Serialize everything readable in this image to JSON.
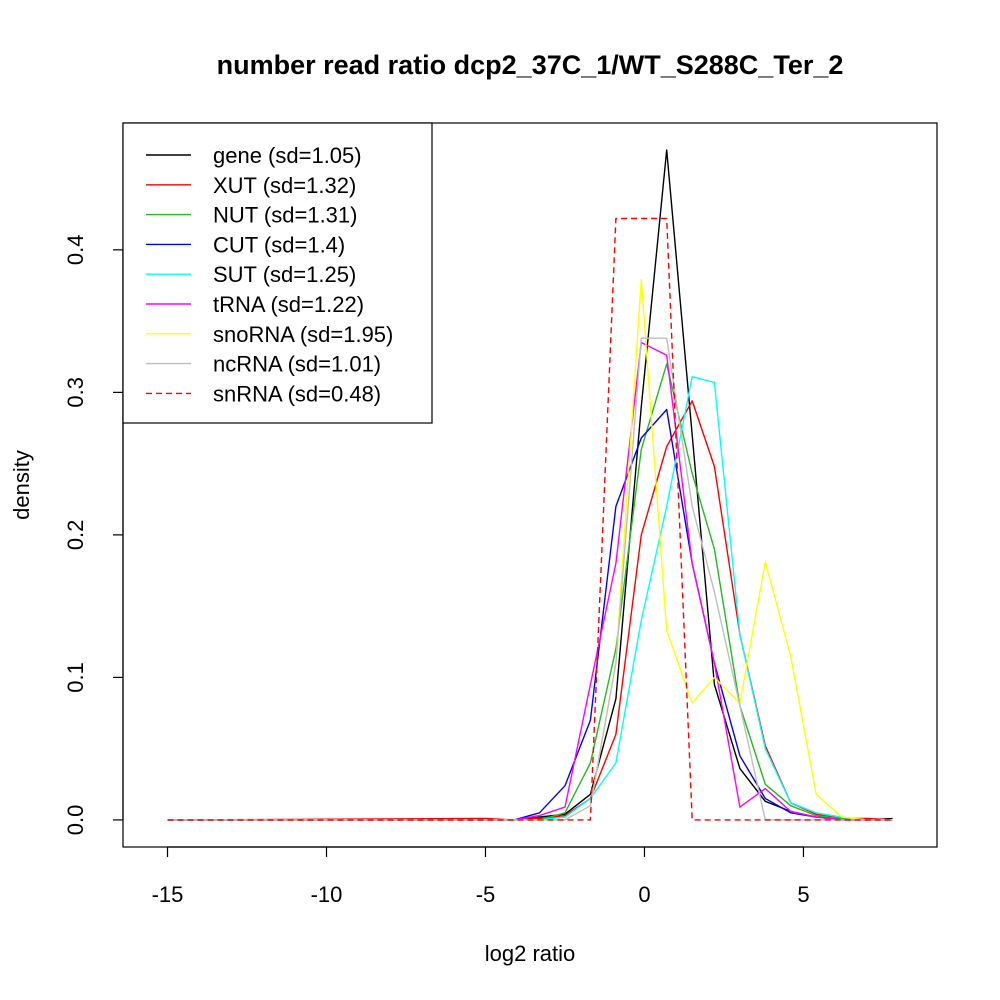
{
  "chart_data": {
    "type": "line",
    "title": "number read ratio dcp2_37C_1/WT_S288C_Ter_2",
    "xlabel": "log2 ratio",
    "ylabel": "density",
    "xlim": [
      -16.4,
      9.2
    ],
    "ylim": [
      -0.019,
      0.489
    ],
    "x_ticks": [
      -15,
      -10,
      -5,
      0,
      5
    ],
    "x_tick_labels": [
      "-15",
      "-10",
      "-5",
      "0",
      "5"
    ],
    "y_ticks": [
      0.0,
      0.1,
      0.2,
      0.3,
      0.4
    ],
    "y_tick_labels": [
      "0.0",
      "0.1",
      "0.2",
      "0.3",
      "0.4"
    ],
    "grid": false,
    "legend_position": "top-left",
    "series": [
      {
        "name": "gene (sd=1.05)",
        "color": "#000000",
        "dash": false,
        "points": [
          [
            -15.0,
            0
          ],
          [
            -5.0,
            0
          ],
          [
            -4.1,
            0
          ],
          [
            -3.3,
            0.002
          ],
          [
            -2.5,
            0.004
          ],
          [
            -1.7,
            0.018
          ],
          [
            -0.9,
            0.085
          ],
          [
            -0.1,
            0.29
          ],
          [
            0.7,
            0.47
          ],
          [
            1.5,
            0.27
          ],
          [
            2.2,
            0.095
          ],
          [
            3.0,
            0.036
          ],
          [
            3.8,
            0.013
          ],
          [
            4.6,
            0.006
          ],
          [
            5.4,
            0.002
          ],
          [
            6.2,
            0.001
          ],
          [
            7.0,
            0
          ],
          [
            7.8,
            0.001
          ]
        ]
      },
      {
        "name": "XUT (sd=1.32)",
        "color": "#ff0000",
        "dash": false,
        "points": [
          [
            -15.0,
            0
          ],
          [
            -5.0,
            0.001
          ],
          [
            -4.1,
            0
          ],
          [
            -3.3,
            0.001
          ],
          [
            -2.5,
            0.003
          ],
          [
            -1.7,
            0.015
          ],
          [
            -0.9,
            0.06
          ],
          [
            -0.1,
            0.2
          ],
          [
            0.7,
            0.262
          ],
          [
            1.5,
            0.294
          ],
          [
            2.2,
            0.248
          ],
          [
            3.0,
            0.13
          ],
          [
            3.8,
            0.052
          ],
          [
            4.6,
            0.012
          ],
          [
            5.4,
            0.004
          ],
          [
            6.2,
            0.001
          ],
          [
            7.0,
            0.001
          ],
          [
            7.8,
            0
          ]
        ]
      },
      {
        "name": "NUT (sd=1.31)",
        "color": "#22bb22",
        "dash": false,
        "points": [
          [
            -15.0,
            0
          ],
          [
            -5.0,
            0
          ],
          [
            -4.1,
            0
          ],
          [
            -3.3,
            0
          ],
          [
            -2.5,
            0.005
          ],
          [
            -1.7,
            0.04
          ],
          [
            -0.9,
            0.12
          ],
          [
            -0.1,
            0.26
          ],
          [
            0.7,
            0.32
          ],
          [
            1.5,
            0.243
          ],
          [
            2.2,
            0.19
          ],
          [
            3.0,
            0.08
          ],
          [
            3.8,
            0.025
          ],
          [
            4.6,
            0.01
          ],
          [
            5.4,
            0.003
          ],
          [
            6.2,
            0.001
          ],
          [
            7.0,
            0
          ],
          [
            7.8,
            0
          ]
        ]
      },
      {
        "name": "CUT (sd=1.4)",
        "color": "#0000ff",
        "dash": false,
        "points": [
          [
            -15.0,
            0
          ],
          [
            -5.0,
            0
          ],
          [
            -4.1,
            0
          ],
          [
            -3.3,
            0.005
          ],
          [
            -2.5,
            0.024
          ],
          [
            -1.7,
            0.07
          ],
          [
            -0.9,
            0.22
          ],
          [
            -0.1,
            0.268
          ],
          [
            0.7,
            0.288
          ],
          [
            1.5,
            0.18
          ],
          [
            2.2,
            0.11
          ],
          [
            3.0,
            0.045
          ],
          [
            3.8,
            0.015
          ],
          [
            4.6,
            0.005
          ],
          [
            5.4,
            0.002
          ],
          [
            6.2,
            0
          ],
          [
            7.0,
            0
          ],
          [
            7.8,
            0
          ]
        ]
      },
      {
        "name": "SUT (sd=1.25)",
        "color": "#00ffff",
        "dash": false,
        "points": [
          [
            -15.0,
            0
          ],
          [
            -5.0,
            0
          ],
          [
            -4.1,
            0
          ],
          [
            -3.3,
            0
          ],
          [
            -2.5,
            0.002
          ],
          [
            -1.7,
            0.015
          ],
          [
            -0.9,
            0.04
          ],
          [
            -0.1,
            0.14
          ],
          [
            0.7,
            0.22
          ],
          [
            1.5,
            0.311
          ],
          [
            2.2,
            0.307
          ],
          [
            3.0,
            0.13
          ],
          [
            3.8,
            0.05
          ],
          [
            4.6,
            0.012
          ],
          [
            5.4,
            0.005
          ],
          [
            6.2,
            0.002
          ],
          [
            7.0,
            0
          ],
          [
            7.8,
            0
          ]
        ]
      },
      {
        "name": "tRNA (sd=1.22)",
        "color": "#ff00ff",
        "dash": false,
        "points": [
          [
            -15.0,
            0
          ],
          [
            -5.0,
            0
          ],
          [
            -4.1,
            0
          ],
          [
            -3.3,
            0.003
          ],
          [
            -2.5,
            0.009
          ],
          [
            -1.7,
            0.095
          ],
          [
            -0.9,
            0.18
          ],
          [
            -0.1,
            0.335
          ],
          [
            0.7,
            0.326
          ],
          [
            1.5,
            0.18
          ],
          [
            2.2,
            0.11
          ],
          [
            3.0,
            0.009
          ],
          [
            3.8,
            0.022
          ],
          [
            4.6,
            0.006
          ],
          [
            5.4,
            0.002
          ],
          [
            6.2,
            0
          ],
          [
            7.0,
            0
          ],
          [
            7.8,
            0
          ]
        ]
      },
      {
        "name": "snoRNA (sd=1.95)",
        "color": "#ffff00",
        "dash": false,
        "points": [
          [
            -15.0,
            0
          ],
          [
            -5.0,
            0
          ],
          [
            -4.1,
            0
          ],
          [
            -3.3,
            0
          ],
          [
            -2.5,
            0
          ],
          [
            -1.7,
            0.01
          ],
          [
            -0.9,
            0.11
          ],
          [
            -0.1,
            0.379
          ],
          [
            0.7,
            0.133
          ],
          [
            1.5,
            0.082
          ],
          [
            2.2,
            0.1
          ],
          [
            3.0,
            0.082
          ],
          [
            3.8,
            0.181
          ],
          [
            4.6,
            0.115
          ],
          [
            5.4,
            0.018
          ],
          [
            6.2,
            0.002
          ],
          [
            7.0,
            0
          ],
          [
            7.8,
            0
          ]
        ]
      },
      {
        "name": "ncRNA (sd=1.01)",
        "color": "#bebebe",
        "dash": false,
        "points": [
          [
            -15.0,
            0
          ],
          [
            -5.0,
            0
          ],
          [
            -4.1,
            0
          ],
          [
            -3.3,
            0
          ],
          [
            -2.5,
            0
          ],
          [
            -1.7,
            0.01
          ],
          [
            -0.9,
            0.11
          ],
          [
            -0.1,
            0.338
          ],
          [
            0.7,
            0.338
          ],
          [
            1.5,
            0.22
          ],
          [
            2.2,
            0.16
          ],
          [
            3.0,
            0.08
          ],
          [
            3.8,
            0
          ],
          [
            4.6,
            0
          ],
          [
            5.4,
            0
          ],
          [
            6.2,
            0
          ],
          [
            7.0,
            0
          ],
          [
            7.8,
            0
          ]
        ]
      },
      {
        "name": "snRNA (sd=0.48)",
        "color": "#ff0000",
        "dash": true,
        "points": [
          [
            -15.0,
            0
          ],
          [
            -1.7,
            0
          ],
          [
            -0.9,
            0.422
          ],
          [
            -0.1,
            0.422
          ],
          [
            0.7,
            0.422
          ],
          [
            1.5,
            0
          ],
          [
            7.8,
            0
          ]
        ]
      }
    ]
  }
}
